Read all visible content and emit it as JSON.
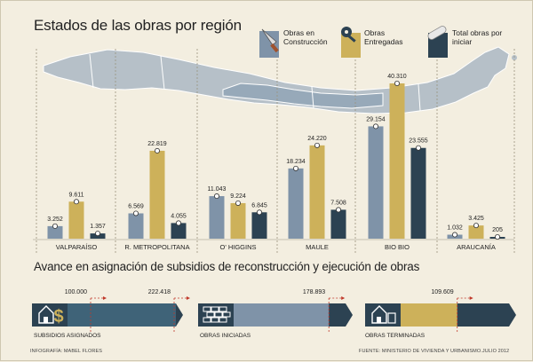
{
  "title": "Estados de las obras por región",
  "legend": {
    "construction": "Obras en Construcción",
    "delivered": "Obras Entregadas",
    "total": "Total obras por iniciar"
  },
  "colors": {
    "construction": "#7f93a8",
    "delivered": "#cdb15a",
    "total": "#2c4252",
    "background": "#f3eee0",
    "map": "#b6c0c8"
  },
  "chart_data": {
    "type": "bar",
    "categories": [
      "VALPARAÍSO",
      "R. METROPOLITANA",
      "O' HIGGINS",
      "MAULE",
      "BIO BIO",
      "ARAUCANÍA"
    ],
    "series": [
      {
        "name": "Obras en Construcción",
        "values": [
          3252,
          6569,
          11043,
          18234,
          29154,
          1032
        ],
        "labels": [
          "3.252",
          "6.569",
          "11.043",
          "18.234",
          "29.154",
          "1.032"
        ]
      },
      {
        "name": "Obras Entregadas",
        "values": [
          9611,
          22819,
          9224,
          24220,
          40310,
          3425
        ],
        "labels": [
          "9.611",
          "22.819",
          "9.224",
          "24.220",
          "40.310",
          "3.425"
        ]
      },
      {
        "name": "Total obras por iniciar",
        "values": [
          1357,
          4055,
          6845,
          7508,
          23555,
          205
        ],
        "labels": [
          "1.357",
          "4.055",
          "6.845",
          "7.508",
          "23.555",
          "205"
        ]
      }
    ],
    "ylim": [
      0,
      40310
    ]
  },
  "progress": {
    "title": "Avance en asignación de subsidios de reconstrucción y ejecución de obras",
    "items": [
      {
        "label": "SUBSIDIOS ASIGNADOS",
        "icon": "house-dollar-icon",
        "markers": [
          {
            "value": "100.000",
            "fraction": 0.2
          },
          {
            "value": "222.418",
            "fraction": 1.0
          }
        ]
      },
      {
        "label": "OBRAS INICIADAS",
        "icon": "bricks-icon",
        "markers": [
          {
            "value": "178.893",
            "fraction": 0.8
          }
        ]
      },
      {
        "label": "OBRAS TERMINADAS",
        "icon": "house-icon",
        "markers": [
          {
            "value": "109.609",
            "fraction": 0.49
          }
        ]
      }
    ]
  },
  "credits": {
    "left": "INFOGRAFÍA: MABEL FLORES",
    "right": "FUENTE: MINISTERIO DE VIVIENDA Y URBANISMO.JULIO 2012"
  }
}
